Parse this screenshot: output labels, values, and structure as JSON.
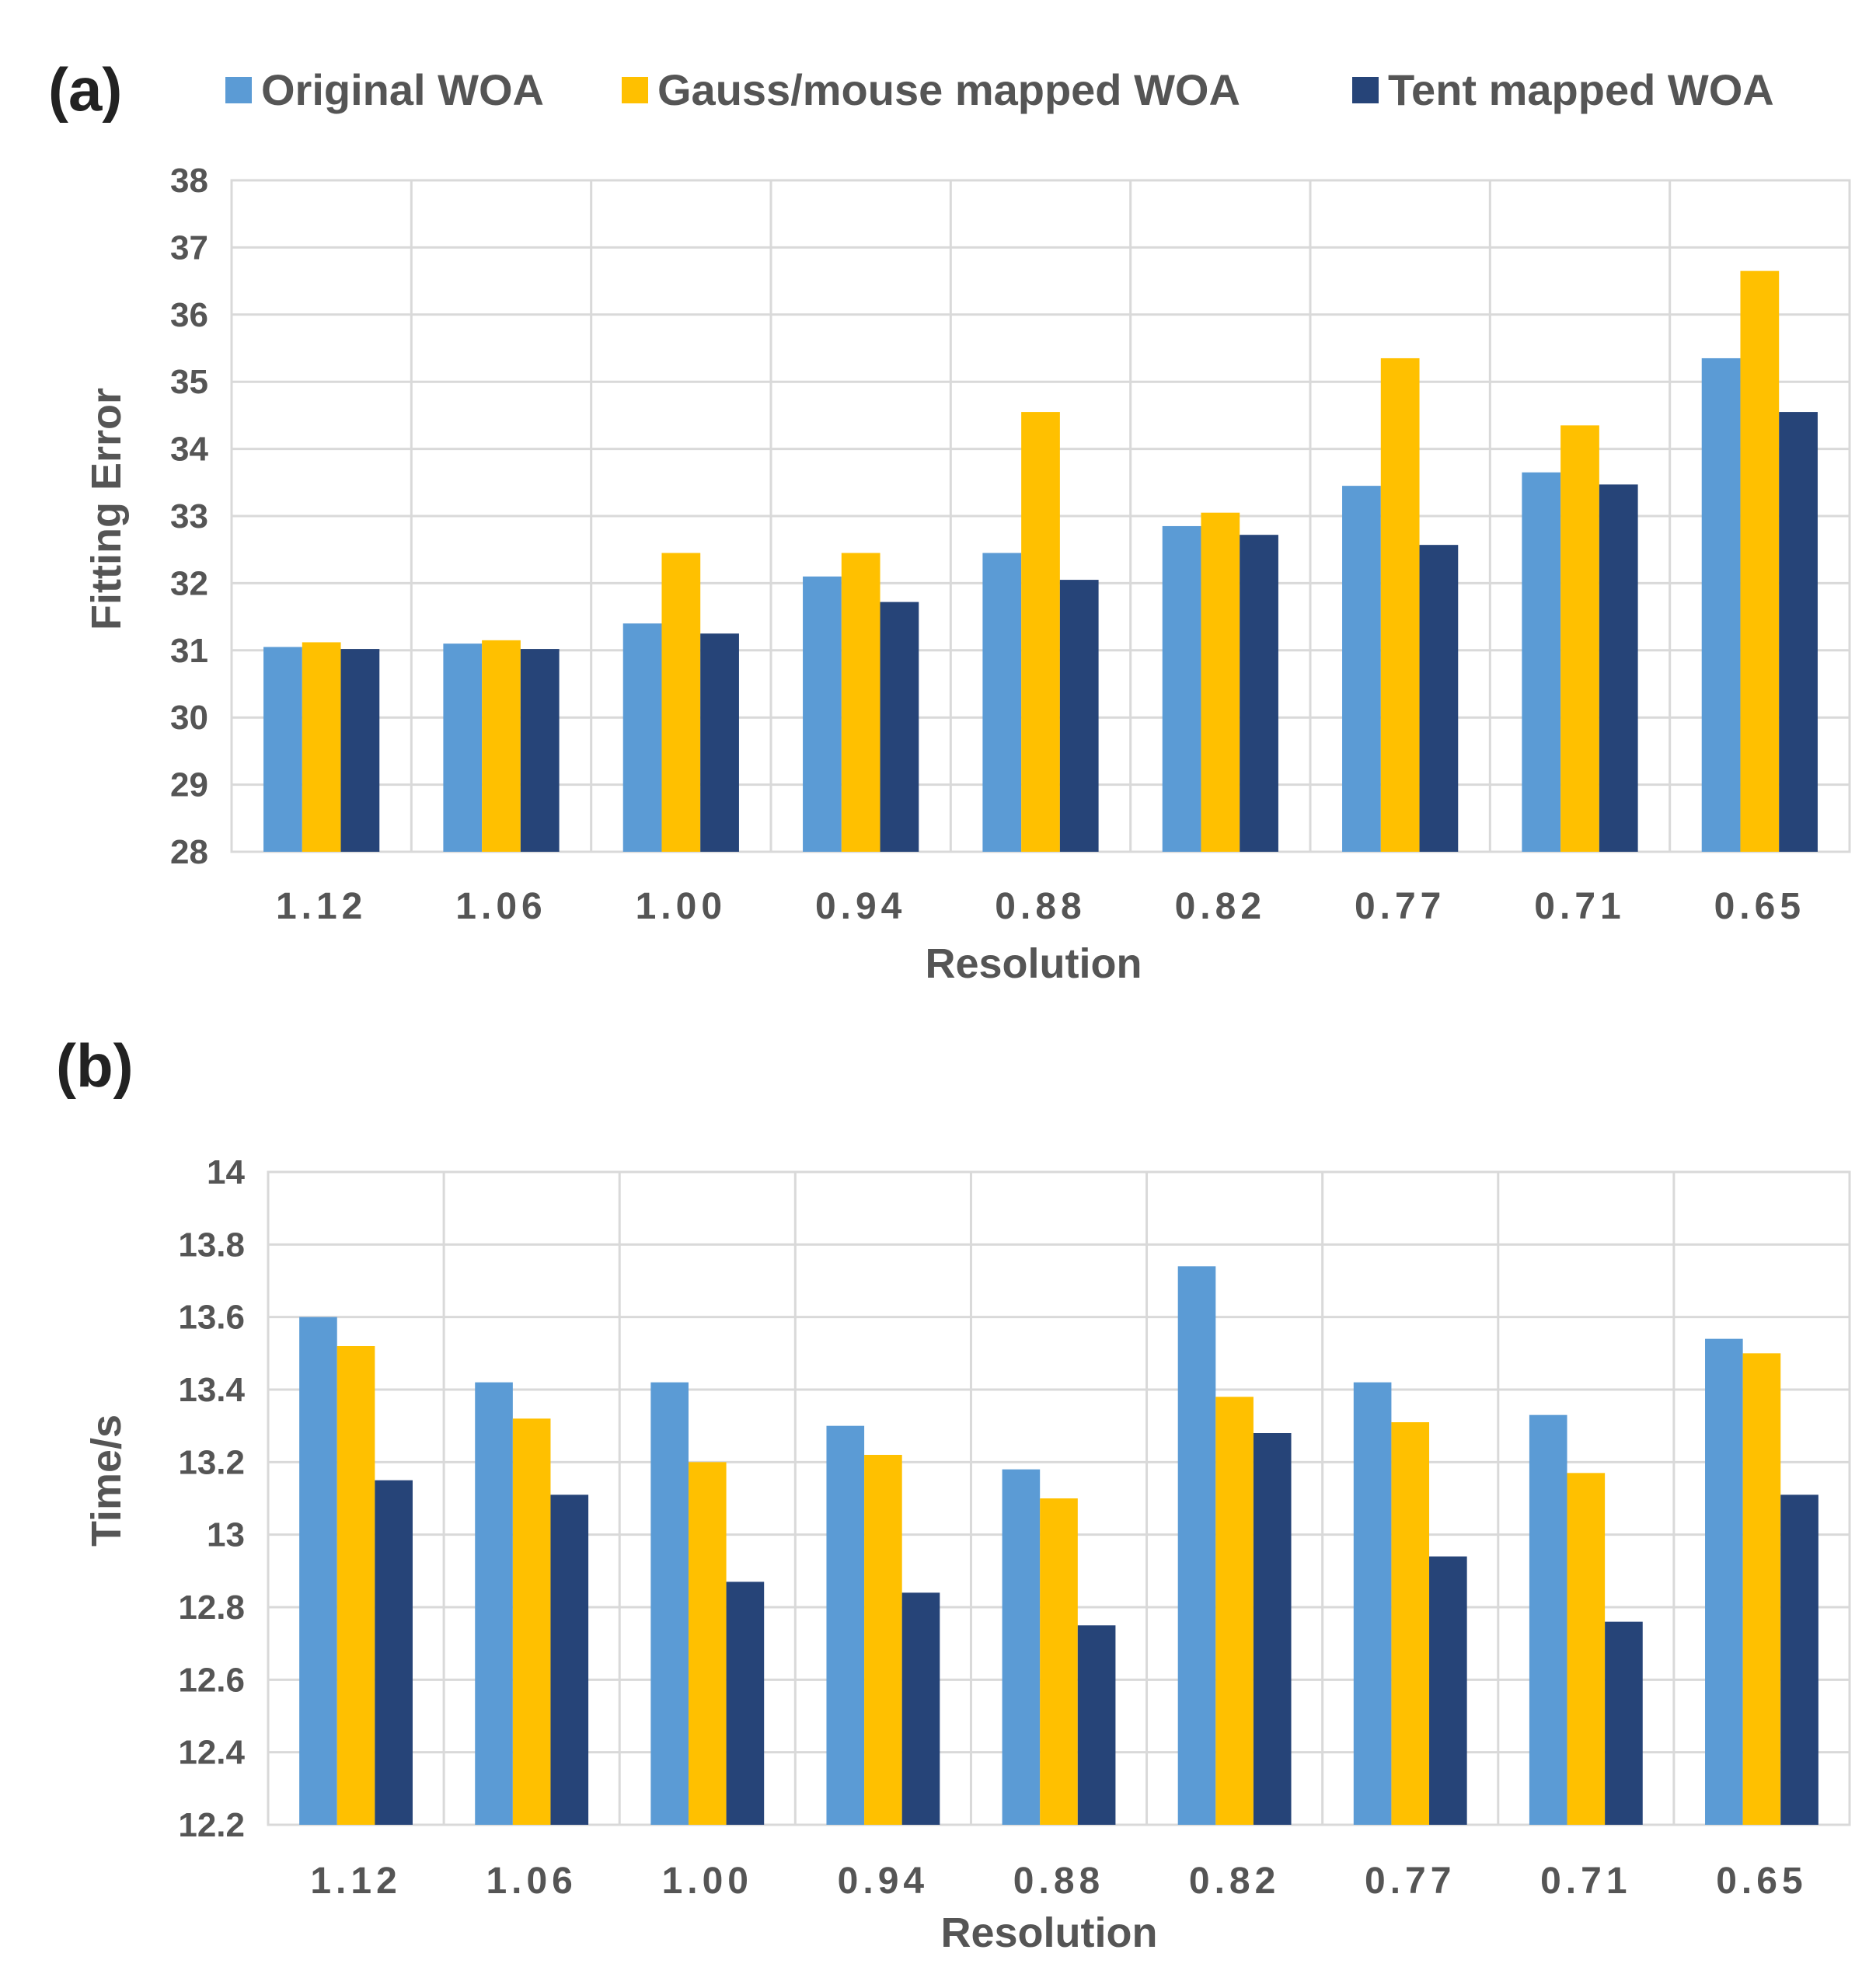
{
  "legend": [
    {
      "name": "Original WOA",
      "color": "#5b9bd5"
    },
    {
      "name": "Gauss/mouse mapped WOA",
      "color": "#ffc000"
    },
    {
      "name": "Tent mapped WOA",
      "color": "#264478"
    }
  ],
  "chart_data": [
    {
      "panel": "(a)",
      "type": "bar",
      "xlabel": "Resolution",
      "ylabel": "Fitting Error",
      "ylim": [
        28,
        38
      ],
      "ystep": 1,
      "yticks": [
        "28",
        "29",
        "30",
        "31",
        "32",
        "33",
        "34",
        "35",
        "36",
        "37",
        "38"
      ],
      "grid": true,
      "legend_position": "top",
      "categories": [
        "1.12",
        "1.06",
        "1.00",
        "0.94",
        "0.88",
        "0.82",
        "0.77",
        "0.71",
        "0.65"
      ],
      "series": [
        {
          "name": "Original WOA",
          "color": "#5b9bd5",
          "values": [
            31.05,
            31.1,
            31.4,
            32.1,
            32.45,
            32.85,
            33.45,
            33.65,
            35.35
          ]
        },
        {
          "name": "Gauss/mouse mapped WOA",
          "color": "#ffc000",
          "values": [
            31.12,
            31.15,
            32.45,
            32.45,
            34.55,
            33.05,
            35.35,
            34.35,
            36.65
          ]
        },
        {
          "name": "Tent mapped WOA",
          "color": "#264478",
          "values": [
            31.02,
            31.02,
            31.25,
            31.72,
            32.05,
            32.72,
            32.57,
            33.47,
            34.55
          ]
        }
      ]
    },
    {
      "panel": "(b)",
      "type": "bar",
      "xlabel": "Resolution",
      "ylabel": "Time/s",
      "ylim": [
        12.2,
        14
      ],
      "ystep": 0.2,
      "yticks": [
        "12.2",
        "12.4",
        "12.6",
        "12.8",
        "13",
        "13.2",
        "13.4",
        "13.6",
        "13.8",
        "14"
      ],
      "grid": true,
      "categories": [
        "1.12",
        "1.06",
        "1.00",
        "0.94",
        "0.88",
        "0.82",
        "0.77",
        "0.71",
        "0.65"
      ],
      "series": [
        {
          "name": "Original WOA",
          "color": "#5b9bd5",
          "values": [
            13.6,
            13.42,
            13.42,
            13.3,
            13.18,
            13.74,
            13.42,
            13.33,
            13.54
          ]
        },
        {
          "name": "Gauss/mouse mapped WOA",
          "color": "#ffc000",
          "values": [
            13.52,
            13.32,
            13.2,
            13.22,
            13.1,
            13.38,
            13.31,
            13.17,
            13.5
          ]
        },
        {
          "name": "Tent mapped WOA",
          "color": "#264478",
          "values": [
            13.15,
            13.11,
            12.87,
            12.84,
            12.75,
            13.28,
            12.94,
            12.76,
            13.11
          ]
        }
      ]
    }
  ]
}
